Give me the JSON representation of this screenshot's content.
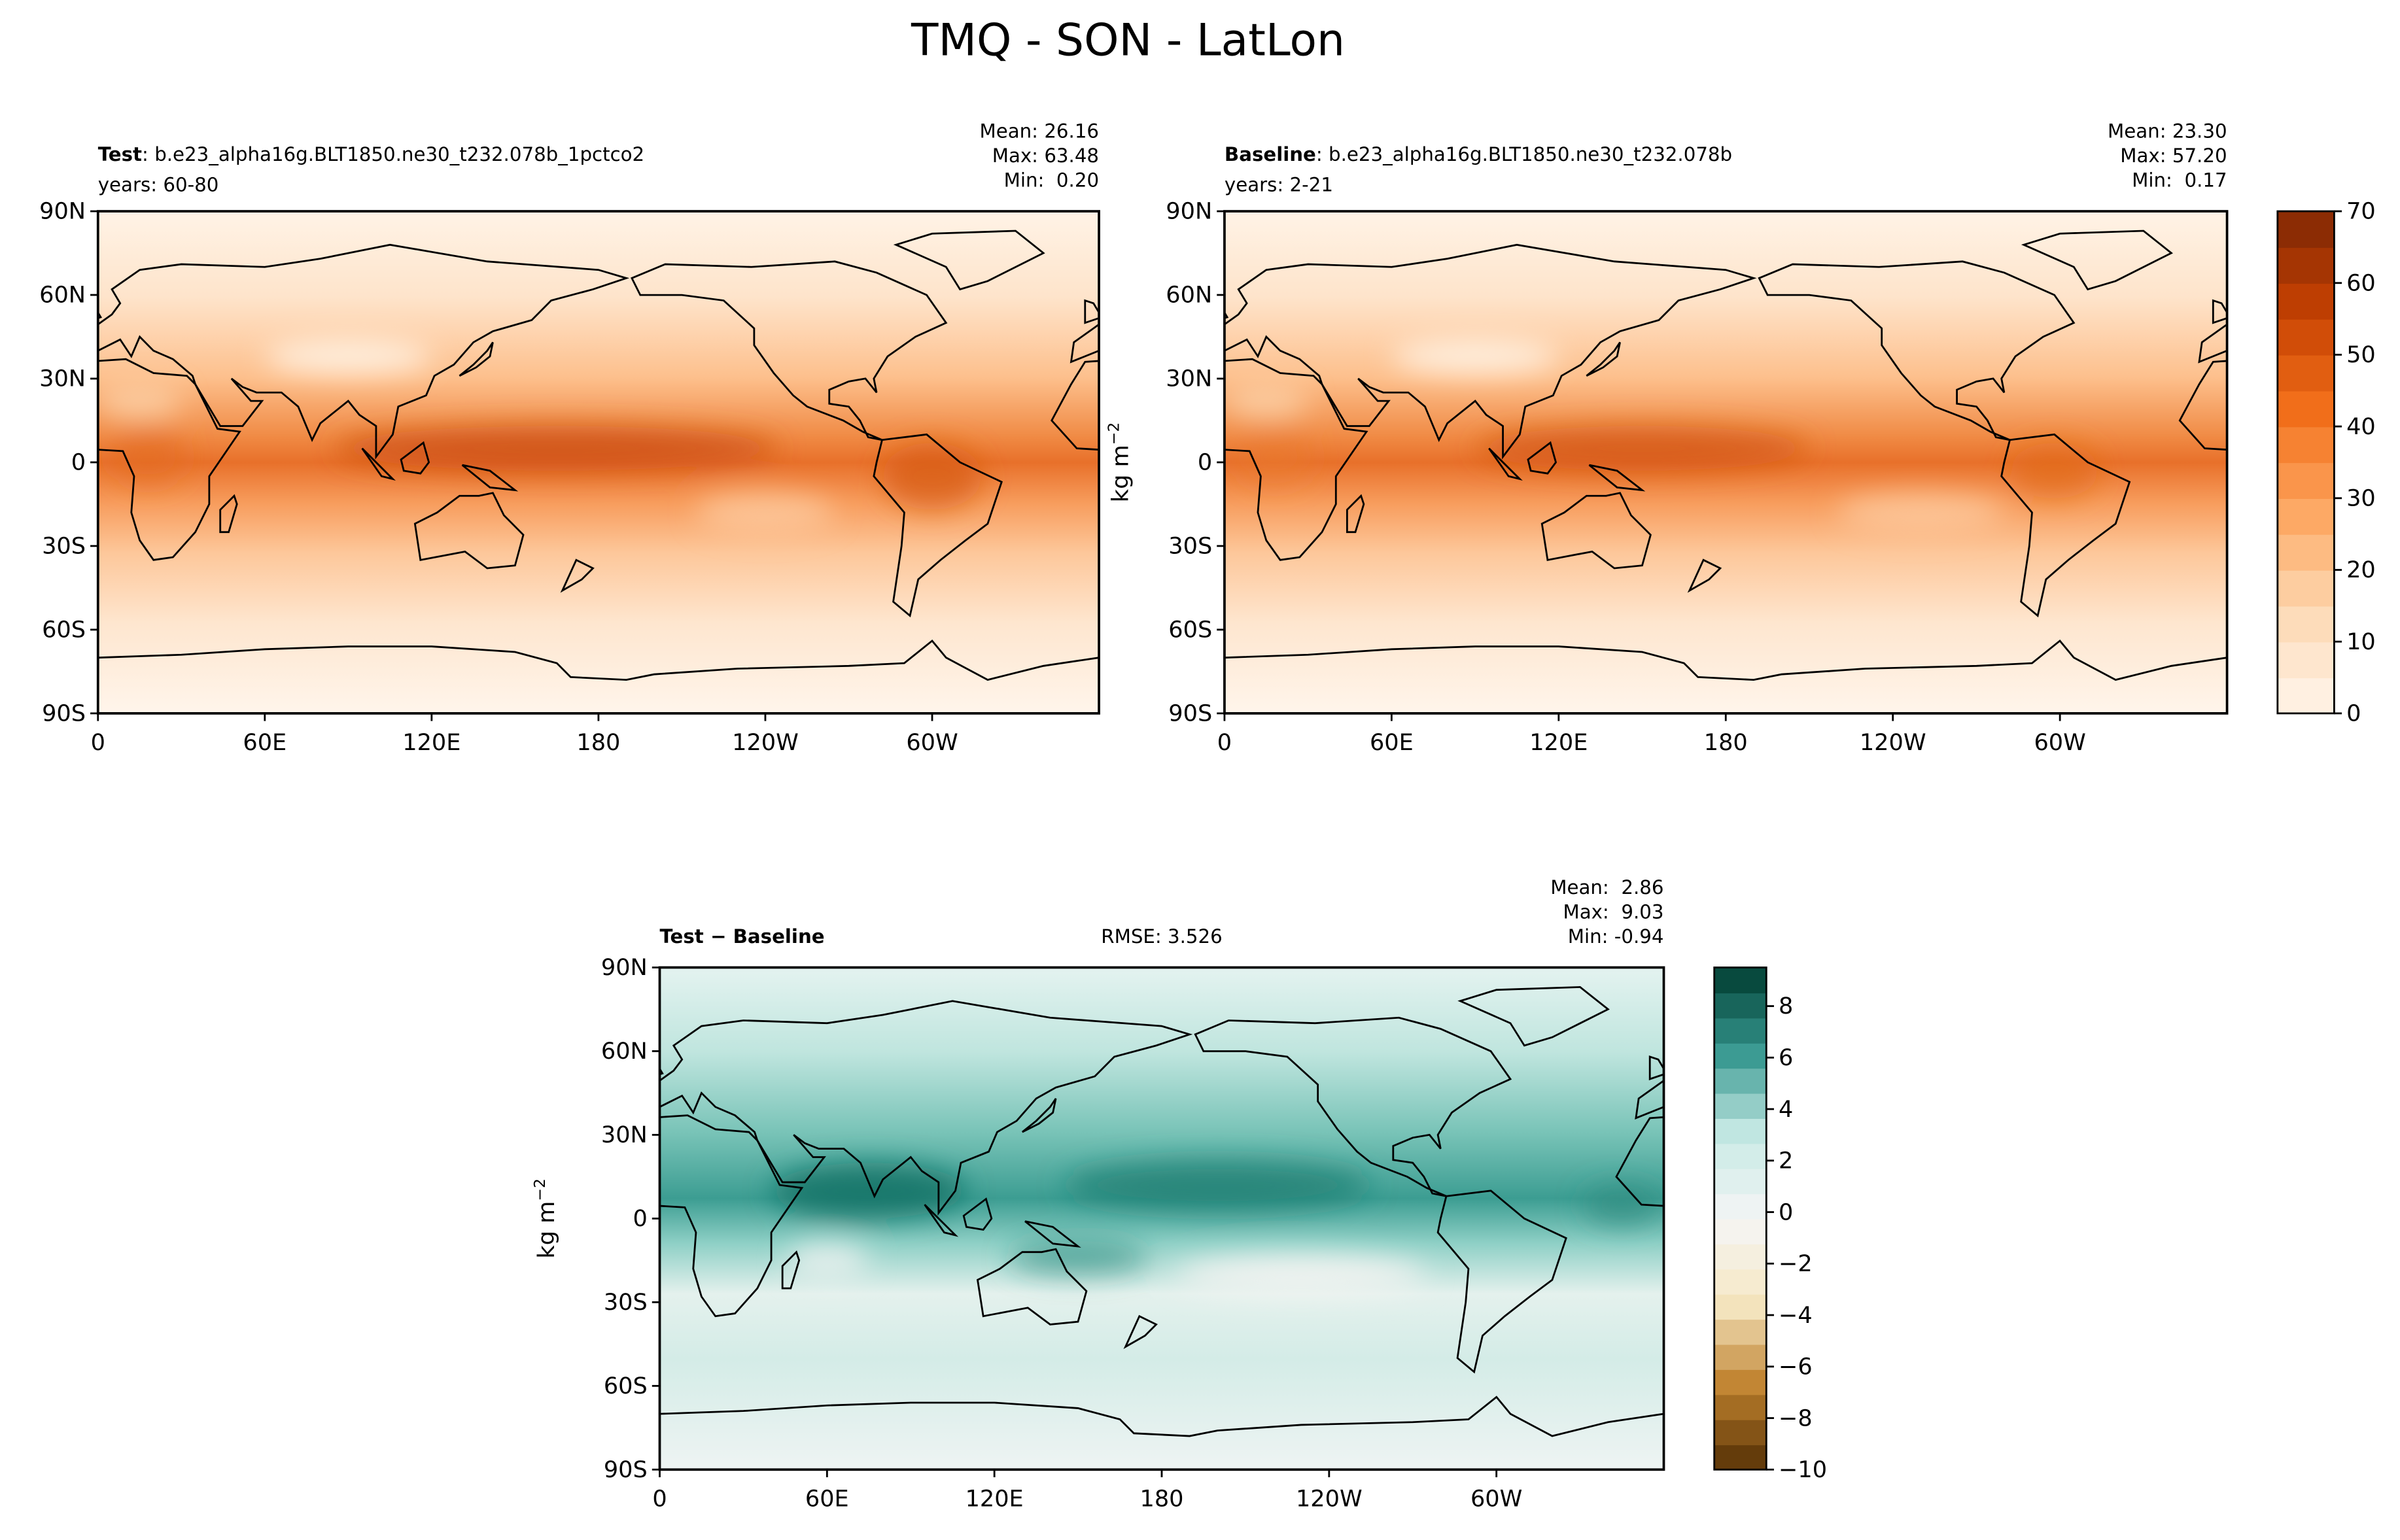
{
  "title": "TMQ - SON - LatLon",
  "panels": [
    {
      "name": "Test",
      "subtitle": ": b.e23_alpha16g.BLT1850.ne30_t232.078b_1pctco2",
      "years": "years: 60-80",
      "stats": [
        "Mean: 26.16",
        "Max: 63.48",
        "Min:  0.20"
      ]
    },
    {
      "name": "Baseline",
      "subtitle": ": b.e23_alpha16g.BLT1850.ne30_t232.078b",
      "years": "years: 2-21",
      "stats": [
        "Mean: 23.30",
        "Max: 57.20",
        "Min:  0.17"
      ]
    },
    {
      "name": "Test − Baseline",
      "rmse": "RMSE: 3.526",
      "stats": [
        "Mean:  2.86",
        "Max:  9.03",
        "Min: -0.94"
      ]
    }
  ],
  "lat_range": [
    -90,
    90
  ],
  "lon_range": [
    0,
    360
  ],
  "lat_ticks": [
    {
      "value": 90,
      "label": "90N"
    },
    {
      "value": 60,
      "label": "60N"
    },
    {
      "value": 30,
      "label": "30N"
    },
    0,
    {
      "value": -30,
      "label": "30S"
    },
    {
      "value": -60,
      "label": "60S"
    },
    {
      "value": -90,
      "label": "90S"
    }
  ],
  "lon_ticks": [
    0,
    {
      "value": 60,
      "label": "60E"
    },
    {
      "value": 120,
      "label": "120E"
    },
    180,
    {
      "value": 240,
      "label": "120W"
    },
    {
      "value": 300,
      "label": "60W"
    }
  ],
  "colorbars": [
    {
      "units": {
        "base": "kg m",
        "exponent": "−2"
      },
      "range": [
        0,
        70
      ],
      "ticks": [
        0,
        10,
        20,
        30,
        40,
        50,
        60,
        70
      ]
    },
    {
      "units": {
        "base": "kg m",
        "exponent": "−2"
      },
      "range": [
        -10,
        9.5
      ],
      "ticks": [
        {
          "value": -10,
          "label": "−10"
        },
        {
          "value": -8,
          "label": "−8"
        },
        {
          "value": -6,
          "label": "−6"
        },
        {
          "value": -4,
          "label": "−4"
        },
        {
          "value": -2,
          "label": "−2"
        },
        0,
        2,
        4,
        6,
        8
      ]
    }
  ]
}
